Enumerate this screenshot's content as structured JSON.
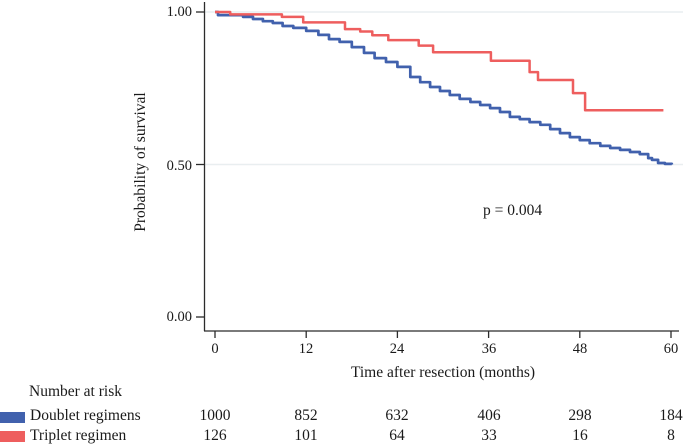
{
  "figure": {
    "p_value": "p = 0.004"
  },
  "chart_data": {
    "type": "line",
    "subtype": "kaplan-meier-step",
    "title": "",
    "xlabel": "Time after resection (months)",
    "ylabel": "Probability of survival",
    "xlim": [
      0,
      60
    ],
    "ylim": [
      0.0,
      1.0
    ],
    "x_ticks": [
      0,
      12,
      24,
      36,
      48,
      60
    ],
    "x_tick_labels": [
      "0",
      "12",
      "24",
      "36",
      "48",
      "60"
    ],
    "y_ticks": [
      1.0,
      0.5,
      0.0
    ],
    "y_tick_labels": [
      "1.00",
      "0.50",
      "0.00"
    ],
    "grid": "horizontal-light",
    "annotation": "p = 0.004",
    "legend_position": "bottom-left-risk-table",
    "style": {
      "axis": "#2b2b2b",
      "gridline": "#e9eef0",
      "background": "#ffffff"
    },
    "series": [
      {
        "name": "Doublet regimens",
        "color": "#4161ad",
        "points": [
          [
            0,
            1.0
          ],
          [
            0.4,
            0.99
          ],
          [
            3.7,
            0.984
          ],
          [
            5,
            0.977
          ],
          [
            6.3,
            0.97
          ],
          [
            7.6,
            0.964
          ],
          [
            8.9,
            0.954
          ],
          [
            10.3,
            0.948
          ],
          [
            12,
            0.938
          ],
          [
            13.6,
            0.925
          ],
          [
            15,
            0.911
          ],
          [
            16.4,
            0.902
          ],
          [
            18,
            0.885
          ],
          [
            19.6,
            0.866
          ],
          [
            21,
            0.849
          ],
          [
            22.5,
            0.836
          ],
          [
            24,
            0.82
          ],
          [
            25.7,
            0.787
          ],
          [
            27,
            0.77
          ],
          [
            28.3,
            0.754
          ],
          [
            29.6,
            0.741
          ],
          [
            30.9,
            0.728
          ],
          [
            32.2,
            0.715
          ],
          [
            33.6,
            0.705
          ],
          [
            34.9,
            0.695
          ],
          [
            36.2,
            0.685
          ],
          [
            37.5,
            0.672
          ],
          [
            38.8,
            0.656
          ],
          [
            40.1,
            0.649
          ],
          [
            41.4,
            0.639
          ],
          [
            42.8,
            0.63
          ],
          [
            44.1,
            0.616
          ],
          [
            45.4,
            0.603
          ],
          [
            46.7,
            0.59
          ],
          [
            48,
            0.58
          ],
          [
            49.3,
            0.57
          ],
          [
            50.7,
            0.561
          ],
          [
            52,
            0.554
          ],
          [
            53.3,
            0.548
          ],
          [
            54.6,
            0.541
          ],
          [
            55.9,
            0.534
          ],
          [
            57,
            0.521
          ],
          [
            57.5,
            0.515
          ],
          [
            58.3,
            0.505
          ],
          [
            59.2,
            0.502
          ],
          [
            60.1,
            0.5
          ]
        ]
      },
      {
        "name": "Triplet regimen",
        "color": "#ee5e5e",
        "points": [
          [
            0,
            1.0
          ],
          [
            2,
            0.992
          ],
          [
            8.8,
            0.984
          ],
          [
            11.6,
            0.966
          ],
          [
            17.1,
            0.944
          ],
          [
            19.1,
            0.936
          ],
          [
            20.7,
            0.924
          ],
          [
            22.8,
            0.908
          ],
          [
            26.8,
            0.89
          ],
          [
            28.7,
            0.868
          ],
          [
            36.3,
            0.84
          ],
          [
            41.4,
            0.803
          ],
          [
            42.5,
            0.777
          ],
          [
            47.1,
            0.734
          ],
          [
            48.7,
            0.678
          ],
          [
            59,
            0.678
          ]
        ]
      }
    ]
  },
  "risk_table": {
    "title": "Number at risk",
    "time_points": [
      "0",
      "12",
      "24",
      "36",
      "48",
      "60"
    ],
    "rows": [
      {
        "label": "Doublet regimens",
        "color": "#4161ad",
        "values": [
          "1000",
          "852",
          "632",
          "406",
          "298",
          "184"
        ]
      },
      {
        "label": "Triplet regimen",
        "color": "#ee5e5e",
        "values": [
          "126",
          "101",
          "64",
          "33",
          "16",
          "8"
        ]
      }
    ]
  }
}
